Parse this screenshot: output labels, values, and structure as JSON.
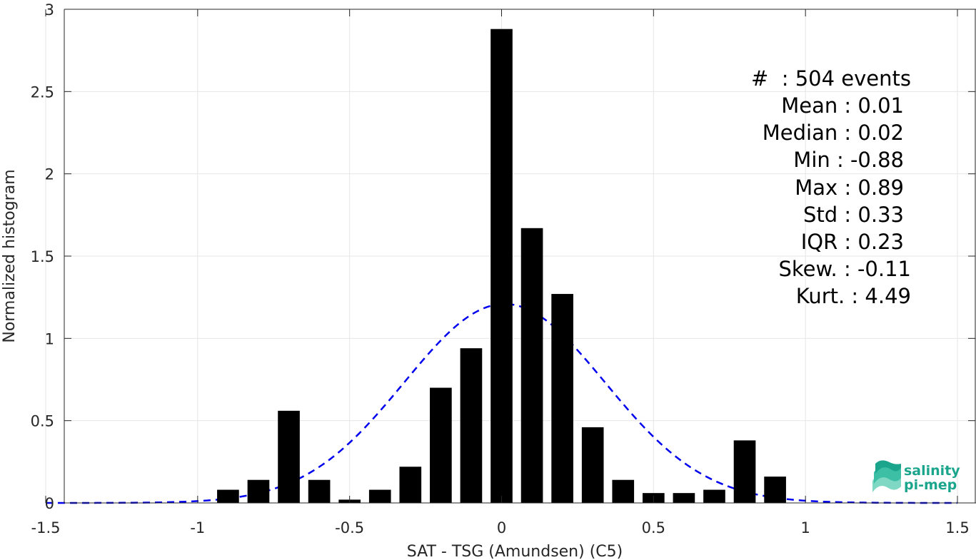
{
  "chart_data": {
    "type": "bar",
    "xlabel": "SAT - TSG (Amundsen) (C5)",
    "ylabel": "Normalized histogram",
    "xlim": [
      -1.5,
      1.5
    ],
    "ylim": [
      0,
      3
    ],
    "grid": true,
    "xticks": [
      -1.5,
      -1,
      -0.5,
      0,
      0.5,
      1,
      1.5
    ],
    "xtick_labels": [
      "-1.5",
      "-1",
      "-0.5",
      "0",
      "0.5",
      "1",
      "1.5"
    ],
    "yticks": [
      0,
      0.5,
      1,
      1.5,
      2,
      2.5,
      3
    ],
    "ytick_labels": [
      "0",
      "0.5",
      "1",
      "1.5",
      "2",
      "2.5",
      "3"
    ],
    "bin_width": 0.1,
    "bars": {
      "x": [
        -0.9,
        -0.8,
        -0.7,
        -0.6,
        -0.5,
        -0.4,
        -0.3,
        -0.2,
        -0.1,
        0.0,
        0.1,
        0.2,
        0.3,
        0.4,
        0.5,
        0.6,
        0.7,
        0.8,
        0.9
      ],
      "values": [
        0.08,
        0.14,
        0.56,
        0.14,
        0.02,
        0.08,
        0.22,
        0.7,
        0.94,
        2.88,
        1.67,
        1.27,
        0.46,
        0.14,
        0.06,
        0.06,
        0.08,
        0.38,
        0.16
      ],
      "color": "#000000"
    },
    "fit": {
      "style": "dashed",
      "color": "#0000ee",
      "mean": 0.01,
      "std": 0.33,
      "x_range": [
        -1.5,
        1.5
      ]
    },
    "stats": {
      "count": "#  : 504 events",
      "mean": "Mean : 0.01",
      "median": "Median : 0.02",
      "min": "Min : -0.88",
      "max": "Max : 0.89",
      "std": "Std : 0.33",
      "iqr": "IQR : 0.23",
      "skew": "Skew. : -0.11",
      "kurt": "Kurt. : 4.49"
    }
  },
  "logo": {
    "line1": "salinity",
    "line2": "pi-mep",
    "color": "#1aa58c"
  }
}
